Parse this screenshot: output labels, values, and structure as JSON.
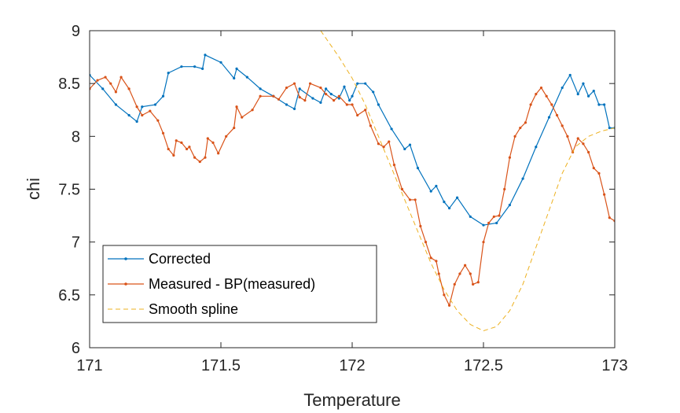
{
  "chart_data": {
    "type": "line",
    "title": "",
    "xlabel": "Temperature",
    "ylabel": "chi",
    "xlim": [
      171,
      173
    ],
    "ylim": [
      6,
      9
    ],
    "xticks": [
      "171",
      "171.5",
      "172",
      "172.5",
      "173"
    ],
    "yticks": [
      "6",
      "6.5",
      "7",
      "7.5",
      "8",
      "8.5",
      "9"
    ],
    "grid": false,
    "legend_position": "bottom-left",
    "series": [
      {
        "name": "Corrected",
        "color": "#0072BD",
        "style": "solid-dots",
        "points": [
          [
            171.0,
            8.58
          ],
          [
            171.05,
            8.45
          ],
          [
            171.1,
            8.3
          ],
          [
            171.15,
            8.2
          ],
          [
            171.18,
            8.14
          ],
          [
            171.2,
            8.28
          ],
          [
            171.25,
            8.3
          ],
          [
            171.28,
            8.38
          ],
          [
            171.3,
            8.6
          ],
          [
            171.35,
            8.66
          ],
          [
            171.4,
            8.66
          ],
          [
            171.43,
            8.64
          ],
          [
            171.44,
            8.77
          ],
          [
            171.5,
            8.7
          ],
          [
            171.55,
            8.55
          ],
          [
            171.56,
            8.64
          ],
          [
            171.6,
            8.56
          ],
          [
            171.65,
            8.45
          ],
          [
            171.7,
            8.38
          ],
          [
            171.75,
            8.3
          ],
          [
            171.78,
            8.26
          ],
          [
            171.8,
            8.45
          ],
          [
            171.85,
            8.36
          ],
          [
            171.88,
            8.32
          ],
          [
            171.9,
            8.45
          ],
          [
            171.92,
            8.4
          ],
          [
            171.95,
            8.36
          ],
          [
            171.97,
            8.47
          ],
          [
            171.99,
            8.34
          ],
          [
            172.0,
            8.38
          ],
          [
            172.02,
            8.5
          ],
          [
            172.05,
            8.5
          ],
          [
            172.08,
            8.42
          ],
          [
            172.1,
            8.3
          ],
          [
            172.15,
            8.07
          ],
          [
            172.2,
            7.88
          ],
          [
            172.22,
            7.92
          ],
          [
            172.25,
            7.7
          ],
          [
            172.3,
            7.48
          ],
          [
            172.32,
            7.53
          ],
          [
            172.35,
            7.38
          ],
          [
            172.37,
            7.32
          ],
          [
            172.4,
            7.42
          ],
          [
            172.45,
            7.24
          ],
          [
            172.5,
            7.16
          ],
          [
            172.55,
            7.18
          ],
          [
            172.6,
            7.35
          ],
          [
            172.65,
            7.6
          ],
          [
            172.7,
            7.9
          ],
          [
            172.75,
            8.18
          ],
          [
            172.8,
            8.46
          ],
          [
            172.83,
            8.58
          ],
          [
            172.86,
            8.4
          ],
          [
            172.88,
            8.5
          ],
          [
            172.9,
            8.38
          ],
          [
            172.92,
            8.43
          ],
          [
            172.94,
            8.3
          ],
          [
            172.96,
            8.3
          ],
          [
            172.98,
            8.08
          ],
          [
            173.0,
            8.08
          ]
        ]
      },
      {
        "name": "Measured - BP(measured)",
        "color": "#D95319",
        "style": "solid-dots",
        "points": [
          [
            171.0,
            8.45
          ],
          [
            171.03,
            8.53
          ],
          [
            171.06,
            8.56
          ],
          [
            171.08,
            8.5
          ],
          [
            171.1,
            8.42
          ],
          [
            171.12,
            8.56
          ],
          [
            171.15,
            8.45
          ],
          [
            171.18,
            8.28
          ],
          [
            171.2,
            8.2
          ],
          [
            171.23,
            8.24
          ],
          [
            171.26,
            8.15
          ],
          [
            171.28,
            8.03
          ],
          [
            171.3,
            7.88
          ],
          [
            171.32,
            7.82
          ],
          [
            171.33,
            7.96
          ],
          [
            171.35,
            7.94
          ],
          [
            171.37,
            7.88
          ],
          [
            171.38,
            7.9
          ],
          [
            171.4,
            7.8
          ],
          [
            171.42,
            7.76
          ],
          [
            171.44,
            7.8
          ],
          [
            171.45,
            7.98
          ],
          [
            171.47,
            7.94
          ],
          [
            171.49,
            7.84
          ],
          [
            171.52,
            8.0
          ],
          [
            171.55,
            8.08
          ],
          [
            171.56,
            8.28
          ],
          [
            171.58,
            8.18
          ],
          [
            171.62,
            8.25
          ],
          [
            171.65,
            8.38
          ],
          [
            171.7,
            8.38
          ],
          [
            171.72,
            8.35
          ],
          [
            171.75,
            8.46
          ],
          [
            171.78,
            8.5
          ],
          [
            171.8,
            8.37
          ],
          [
            171.82,
            8.34
          ],
          [
            171.84,
            8.5
          ],
          [
            171.88,
            8.46
          ],
          [
            171.9,
            8.4
          ],
          [
            171.93,
            8.34
          ],
          [
            171.95,
            8.38
          ],
          [
            171.98,
            8.3
          ],
          [
            172.0,
            8.3
          ],
          [
            172.02,
            8.2
          ],
          [
            172.05,
            8.25
          ],
          [
            172.07,
            8.1
          ],
          [
            172.1,
            7.93
          ],
          [
            172.12,
            7.9
          ],
          [
            172.14,
            7.95
          ],
          [
            172.16,
            7.73
          ],
          [
            172.19,
            7.5
          ],
          [
            172.22,
            7.4
          ],
          [
            172.24,
            7.4
          ],
          [
            172.26,
            7.15
          ],
          [
            172.28,
            7.0
          ],
          [
            172.3,
            6.85
          ],
          [
            172.32,
            6.82
          ],
          [
            172.33,
            6.7
          ],
          [
            172.35,
            6.5
          ],
          [
            172.37,
            6.4
          ],
          [
            172.39,
            6.6
          ],
          [
            172.41,
            6.7
          ],
          [
            172.43,
            6.78
          ],
          [
            172.45,
            6.7
          ],
          [
            172.46,
            6.6
          ],
          [
            172.48,
            6.62
          ],
          [
            172.5,
            7.0
          ],
          [
            172.52,
            7.18
          ],
          [
            172.54,
            7.24
          ],
          [
            172.56,
            7.25
          ],
          [
            172.58,
            7.5
          ],
          [
            172.6,
            7.8
          ],
          [
            172.62,
            8.0
          ],
          [
            172.64,
            8.08
          ],
          [
            172.66,
            8.13
          ],
          [
            172.68,
            8.3
          ],
          [
            172.7,
            8.4
          ],
          [
            172.72,
            8.46
          ],
          [
            172.74,
            8.38
          ],
          [
            172.76,
            8.3
          ],
          [
            172.78,
            8.2
          ],
          [
            172.8,
            8.1
          ],
          [
            172.82,
            8.0
          ],
          [
            172.84,
            7.85
          ],
          [
            172.86,
            7.98
          ],
          [
            172.88,
            7.93
          ],
          [
            172.9,
            7.85
          ],
          [
            172.92,
            7.7
          ],
          [
            172.94,
            7.65
          ],
          [
            172.96,
            7.45
          ],
          [
            172.98,
            7.23
          ],
          [
            173.0,
            7.2
          ]
        ]
      },
      {
        "name": "Smooth spline",
        "color": "#EDB120",
        "style": "dashed",
        "points": [
          [
            171.88,
            9.0
          ],
          [
            171.95,
            8.75
          ],
          [
            172.0,
            8.55
          ],
          [
            172.05,
            8.3
          ],
          [
            172.1,
            8.0
          ],
          [
            172.15,
            7.7
          ],
          [
            172.2,
            7.4
          ],
          [
            172.25,
            7.1
          ],
          [
            172.3,
            6.8
          ],
          [
            172.35,
            6.55
          ],
          [
            172.4,
            6.35
          ],
          [
            172.45,
            6.22
          ],
          [
            172.5,
            6.16
          ],
          [
            172.55,
            6.2
          ],
          [
            172.6,
            6.35
          ],
          [
            172.65,
            6.6
          ],
          [
            172.7,
            6.95
          ],
          [
            172.75,
            7.3
          ],
          [
            172.8,
            7.65
          ],
          [
            172.85,
            7.9
          ],
          [
            172.9,
            8.0
          ],
          [
            172.95,
            8.05
          ],
          [
            173.0,
            8.08
          ]
        ]
      }
    ]
  }
}
